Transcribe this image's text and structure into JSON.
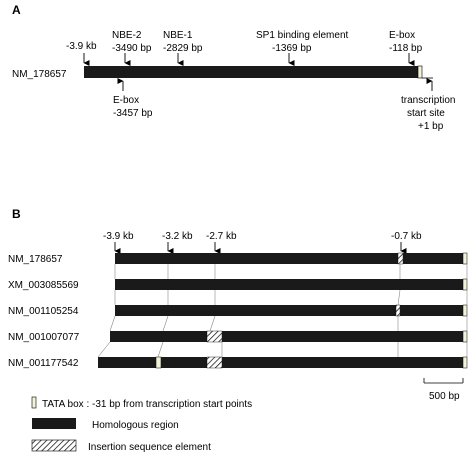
{
  "panel_a": {
    "label": "A",
    "sequence": "NM_178657",
    "markers_above": [
      {
        "id": "start",
        "lines": [
          "-3.9 kb"
        ]
      },
      {
        "id": "nbe2",
        "lines": [
          "NBE-2",
          "-3490 bp"
        ]
      },
      {
        "id": "nbe1",
        "lines": [
          "NBE-1",
          "-2829 bp"
        ]
      },
      {
        "id": "sp1",
        "lines": [
          "SP1 binding element",
          "-1369 bp"
        ]
      },
      {
        "id": "ebox1",
        "lines": [
          "E-box",
          "-118 bp"
        ]
      }
    ],
    "markers_below": [
      {
        "id": "ebox2",
        "lines": [
          "E-box",
          "-3457 bp"
        ]
      },
      {
        "id": "tss",
        "lines": [
          "transcription",
          "start site",
          "+1 bp"
        ]
      }
    ]
  },
  "panel_b": {
    "label": "B",
    "positions": [
      "-3.9 kb",
      "-3.2 kb",
      "-2.7 kb",
      "-0.7 kb"
    ],
    "sequences": [
      "NM_178657",
      "XM_003085569",
      "NM_001105254",
      "NM_001007077",
      "NM_001177542"
    ],
    "scale_bar": "500 bp"
  },
  "legend": {
    "tata": "TATA box : -31 bp from transcription start points",
    "homologous": "Homologous region",
    "insertion": "Insertion sequence element"
  },
  "colors": {
    "bar": "#1a1a1a",
    "tata_fill": "#f3f1d8"
  }
}
